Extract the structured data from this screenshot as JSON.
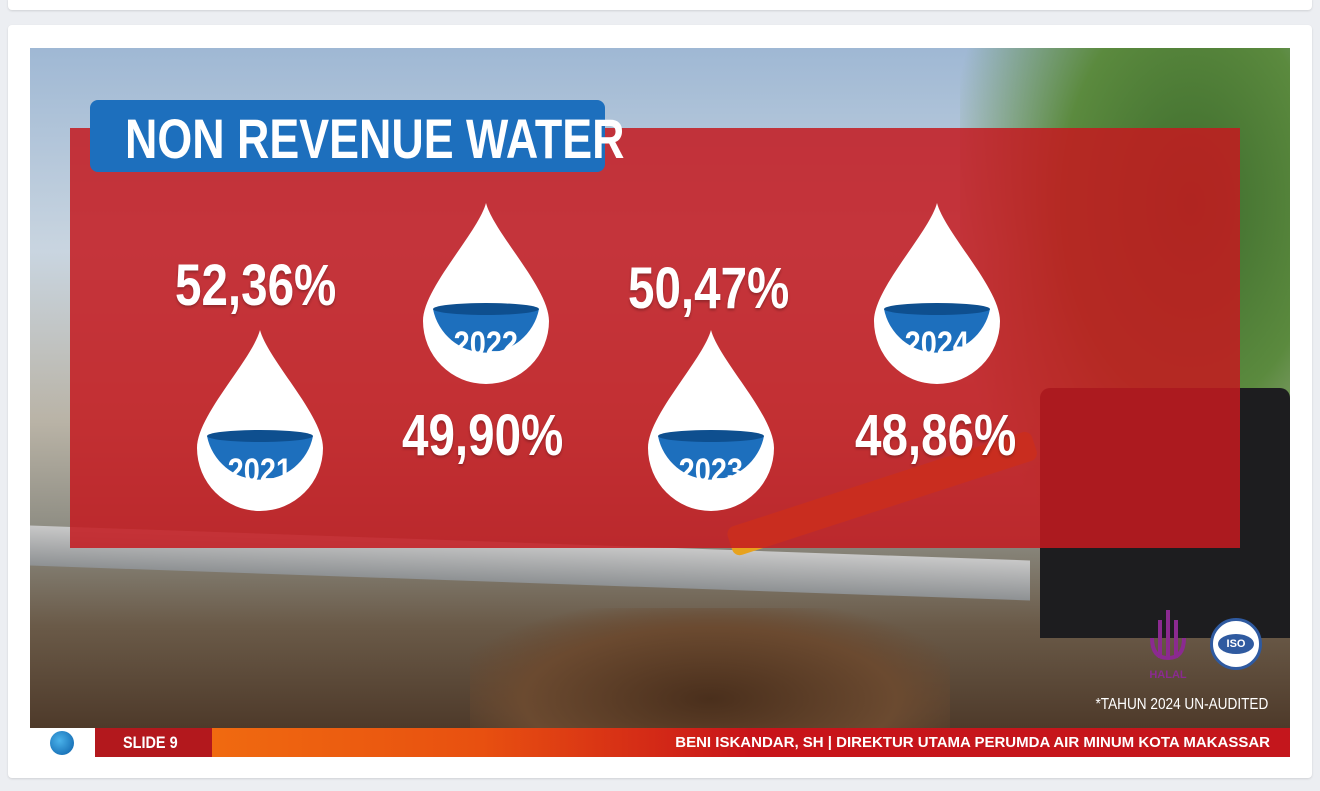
{
  "slide": {
    "title": "NON REVENUE WATER",
    "items": [
      {
        "year": "2021",
        "value": "52,36%"
      },
      {
        "year": "2022",
        "value": "49,90%"
      },
      {
        "year": "2023",
        "value": "50,47%"
      },
      {
        "year": "2024",
        "value": "48,86%"
      }
    ],
    "note": "*TAHUN 2024 UN-AUDITED",
    "halal_label": "HALAL",
    "iso_label": "ISO",
    "footer": {
      "slide_label": "SLIDE 9",
      "presenter": "BENI ISKANDAR, SH | DIREKTUR UTAMA PERUMDA AIR MINUM KOTA MAKASSAR"
    },
    "colors": {
      "panel": "#c41a20",
      "title_bg": "#1d6fbd",
      "drop_fill": "#1d6fbd"
    }
  }
}
